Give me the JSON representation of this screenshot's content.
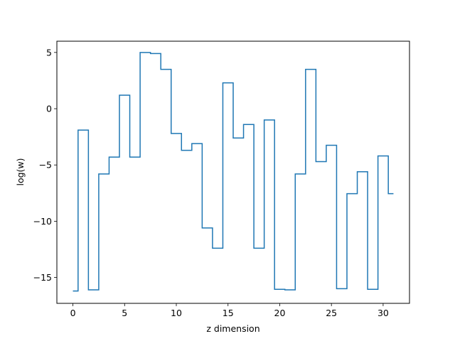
{
  "chart_data": {
    "type": "line",
    "drawstyle": "steps-mid",
    "xlabel": "z dimension",
    "ylabel": "log(w)",
    "xlim": [
      -1.55,
      32.55
    ],
    "ylim": [
      -17.3,
      6.0
    ],
    "xticks": [
      0,
      5,
      10,
      15,
      20,
      25,
      30
    ],
    "yticks": [
      -15,
      -10,
      -5,
      0,
      5
    ],
    "xtick_labels": [
      "0",
      "5",
      "10",
      "15",
      "20",
      "25",
      "30"
    ],
    "ytick_labels": [
      "−15",
      "−10",
      "−5",
      "0",
      "5"
    ],
    "grid": false,
    "line_color": "#1f77b4",
    "series": [
      {
        "x": [
          0,
          1,
          2,
          3,
          4,
          5,
          6,
          7,
          8,
          9,
          10,
          11,
          12,
          13,
          14,
          15,
          16,
          17,
          18,
          19,
          20,
          21,
          22,
          23,
          24,
          25,
          26,
          27,
          28,
          29,
          30,
          31
        ],
        "values": [
          -16.2,
          -1.9,
          -16.1,
          -5.8,
          -4.3,
          1.2,
          -4.3,
          5.0,
          4.9,
          3.5,
          -2.2,
          -3.7,
          -3.1,
          -10.6,
          -12.4,
          2.3,
          -2.6,
          -1.4,
          -12.4,
          -1.0,
          -16.05,
          -16.1,
          -5.8,
          3.5,
          -4.7,
          -3.25,
          -16.0,
          -7.55,
          -5.6,
          -16.05,
          -4.2,
          -7.55
        ]
      }
    ]
  }
}
